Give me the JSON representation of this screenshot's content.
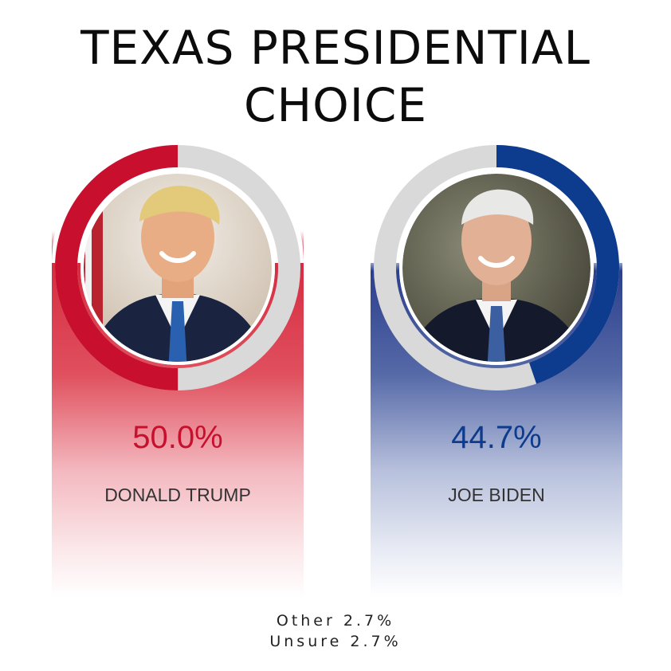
{
  "chart_data": {
    "type": "pie",
    "title": [
      "TEXAS PRESIDENTIAL",
      "CHOICE"
    ],
    "series": [
      {
        "name": "DONALD TRUMP",
        "value": 50.0,
        "label": "50.0%",
        "color": "#c8102e",
        "track_color": "#d9d9d9"
      },
      {
        "name": "JOE BIDEN",
        "value": 44.7,
        "label": "44.7%",
        "color": "#0d3b8e",
        "track_color": "#d9d9d9"
      }
    ],
    "other": [
      {
        "name": "Other",
        "value": 2.7,
        "text": "Other 2.7%"
      },
      {
        "name": "Unsure",
        "value": 2.7,
        "text": "Unsure 2.7%"
      }
    ],
    "portraits": [
      "portrait-trump",
      "portrait-biden"
    ]
  }
}
